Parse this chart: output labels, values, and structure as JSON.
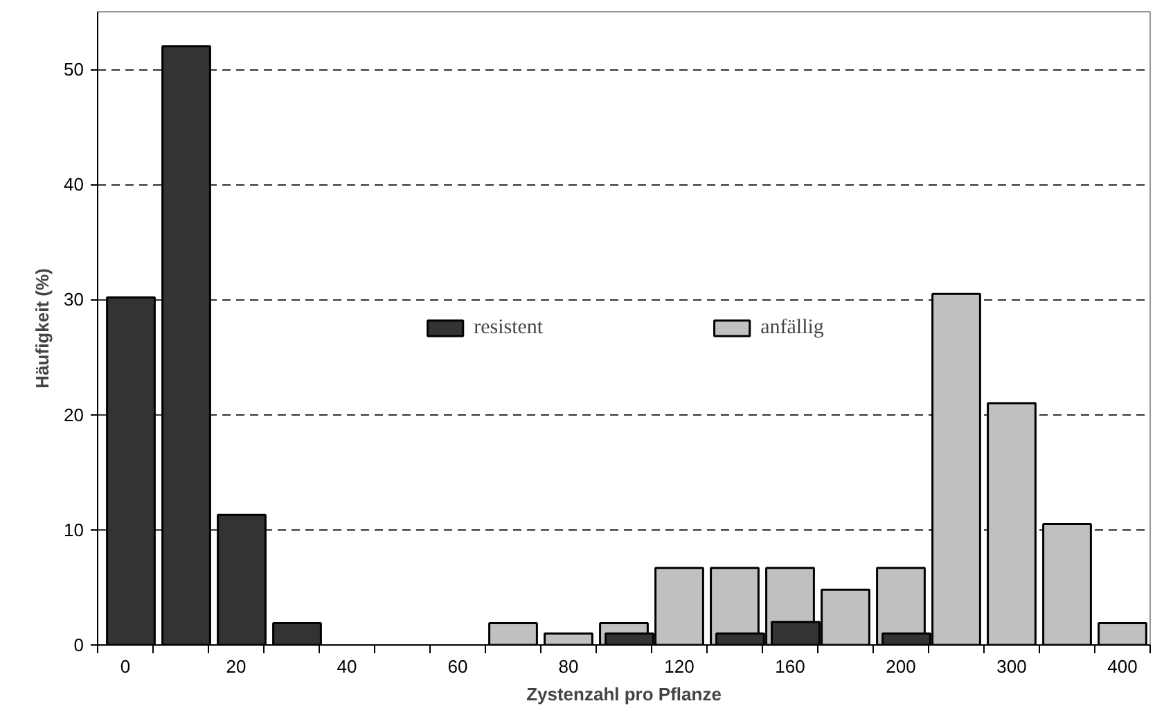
{
  "chart_data": {
    "type": "bar",
    "xlabel": "Zystenzahl pro Pflanze",
    "ylabel": "Häufigkeit (%)",
    "categories": [
      "0",
      null,
      "20",
      null,
      "40",
      null,
      "60",
      null,
      "80",
      null,
      "120",
      null,
      "160",
      null,
      "200",
      null,
      "300",
      null,
      "400"
    ],
    "series": [
      {
        "name": "resistent",
        "color": "#333333",
        "values": [
          30.2,
          52,
          11.3,
          1.9,
          null,
          null,
          null,
          null,
          null,
          1,
          null,
          1,
          2,
          null,
          1,
          null,
          null,
          null,
          null
        ]
      },
      {
        "name": "anfällig",
        "color": "#c0c0c0",
        "values": [
          null,
          null,
          null,
          null,
          null,
          null,
          null,
          1.9,
          1,
          1.9,
          6.7,
          6.7,
          6.7,
          4.8,
          6.7,
          30.5,
          21,
          10.5,
          1.9
        ]
      }
    ],
    "ylim": [
      0,
      55
    ],
    "yticks": [
      0,
      10,
      20,
      30,
      40,
      50
    ],
    "grid": "y",
    "legend": "center"
  }
}
